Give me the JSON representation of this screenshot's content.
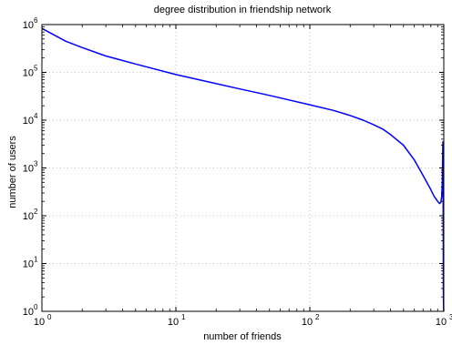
{
  "chart_data": {
    "type": "line",
    "title": "degree distribution in friendship network",
    "xlabel": "number of friends",
    "ylabel": "number of users",
    "xscale": "log",
    "yscale": "log",
    "xlim": [
      1,
      1000
    ],
    "ylim": [
      1,
      1000000
    ],
    "grid": true,
    "line_color": "#0000ff",
    "x_ticks": [
      {
        "base": "10",
        "exp": "0"
      },
      {
        "base": "10",
        "exp": "1"
      },
      {
        "base": "10",
        "exp": "2"
      },
      {
        "base": "10",
        "exp": "3"
      }
    ],
    "y_ticks": [
      {
        "base": "10",
        "exp": "0"
      },
      {
        "base": "10",
        "exp": "1"
      },
      {
        "base": "10",
        "exp": "2"
      },
      {
        "base": "10",
        "exp": "3"
      },
      {
        "base": "10",
        "exp": "4"
      },
      {
        "base": "10",
        "exp": "5"
      },
      {
        "base": "10",
        "exp": "6"
      }
    ],
    "series": [
      {
        "x": [
          1,
          1.5,
          2,
          3,
          5,
          10,
          20,
          30,
          50,
          100,
          150,
          200,
          250,
          300,
          350,
          400,
          500,
          600,
          700,
          800,
          850,
          900,
          930,
          950,
          965,
          975,
          980,
          985,
          988,
          990,
          992,
          994,
          996,
          998
        ],
        "y": [
          830000,
          450000,
          330000,
          220000,
          150000,
          90000,
          58000,
          45000,
          33000,
          21000,
          16000,
          12500,
          10000,
          8000,
          6500,
          5000,
          3000,
          1500,
          700,
          350,
          250,
          200,
          180,
          190,
          250,
          500,
          1500,
          3500,
          800,
          30,
          3,
          2,
          1.5,
          1
        ]
      }
    ]
  }
}
